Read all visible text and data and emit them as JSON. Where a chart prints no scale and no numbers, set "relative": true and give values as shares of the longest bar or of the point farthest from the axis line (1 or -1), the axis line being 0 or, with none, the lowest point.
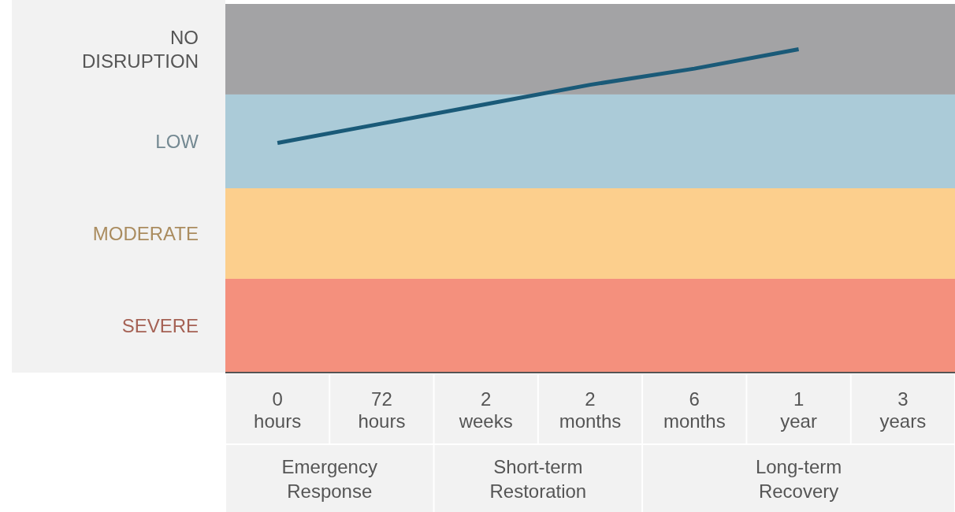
{
  "chart_data": {
    "type": "line",
    "relative": true,
    "categories": [
      "0 hours",
      "72 hours",
      "2 weeks",
      "2 months",
      "6 months",
      "1 year",
      "3 years"
    ],
    "series": [
      {
        "color": "#1a5a78",
        "values": [
          0.71,
          0.77,
          0.83,
          0.89,
          0.94,
          1,
          null
        ]
      }
    ],
    "bands": [
      {
        "axis": "y",
        "from": 0.86,
        "to": 1.14,
        "label": "NO DISRUPTION",
        "color": "#a3a3a5"
      },
      {
        "axis": "y",
        "from": 0.57,
        "to": 0.86,
        "label": "LOW",
        "color": "#abcbd8"
      },
      {
        "axis": "y",
        "from": 0.29,
        "to": 0.57,
        "label": "MODERATE",
        "color": "#fccf8d"
      },
      {
        "axis": "y",
        "from": 0,
        "to": 0.29,
        "label": "SEVERE",
        "color": "#f4907d"
      }
    ],
    "annotations": [
      "Emergency Response",
      "Short-term Restoration",
      "Long-term Recovery"
    ],
    "line_style": "solid",
    "marker": "none"
  }
}
